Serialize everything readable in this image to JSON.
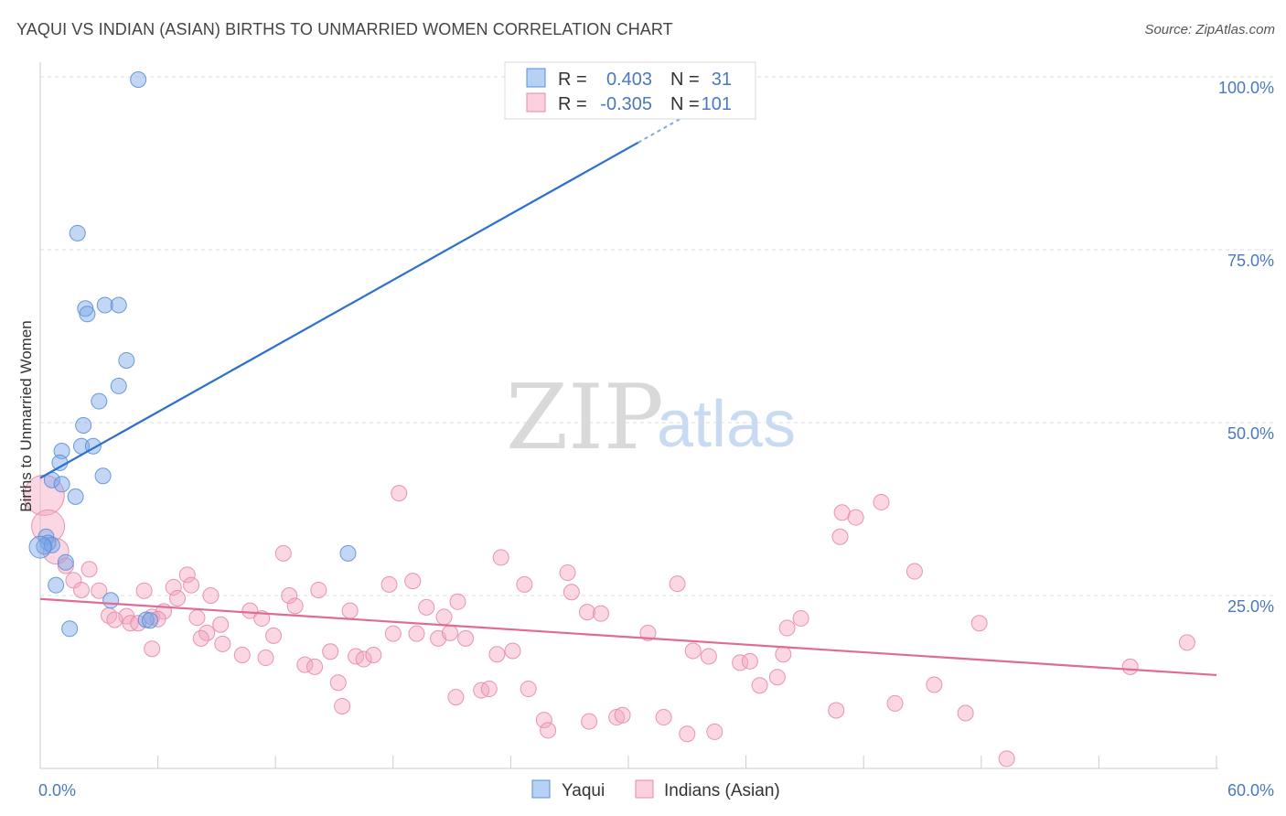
{
  "header": {
    "title": "YAQUI VS INDIAN (ASIAN) BIRTHS TO UNMARRIED WOMEN CORRELATION CHART",
    "source": "Source: ZipAtlas.com"
  },
  "watermark": {
    "zip": "ZIP",
    "atlas": "atlas"
  },
  "legend_stats": [
    {
      "r_label": "R =",
      "r_value": "0.403",
      "n_label": "N =",
      "n_value": "31",
      "color": "#4a78c0"
    },
    {
      "r_label": "R =",
      "r_value": "-0.305",
      "n_label": "N =",
      "n_value": "101",
      "color": "#4a78c0"
    }
  ],
  "chart_data": {
    "type": "scatter",
    "ylabel": "Births to Unmarried Women",
    "xlim": [
      0,
      60
    ],
    "ylim": [
      0,
      100
    ],
    "y_ticks": [
      {
        "value": 25,
        "label": "25.0%"
      },
      {
        "value": 50,
        "label": "50.0%"
      },
      {
        "value": 75,
        "label": "75.0%"
      },
      {
        "value": 100,
        "label": "100.0%"
      }
    ],
    "x_tick_labels": [
      {
        "value": 0,
        "label": "0.0%"
      },
      {
        "value": 60,
        "label": "60.0%"
      }
    ],
    "x_minor_ticks": [
      0,
      6,
      12,
      18,
      24,
      30,
      36,
      42,
      48,
      54,
      60
    ],
    "grid": true,
    "series": [
      {
        "name": "Yaqui",
        "color": "#7aa7e8",
        "stroke": "#5b8fd6",
        "line_color": "#2b6fd0",
        "trend": {
          "x": [
            0,
            30.5
          ],
          "y": [
            42,
            90.5
          ],
          "dashed_x": [
            30.5,
            33
          ],
          "dashed_y": [
            90.5,
            94.5
          ]
        },
        "points": [
          [
            5.0,
            99.6
          ],
          [
            1.9,
            77.4
          ],
          [
            2.3,
            66.5
          ],
          [
            2.4,
            65.7
          ],
          [
            3.3,
            67.0
          ],
          [
            4.0,
            67.0
          ],
          [
            4.4,
            59.0
          ],
          [
            4.0,
            55.3
          ],
          [
            3.0,
            53.1
          ],
          [
            2.2,
            49.6
          ],
          [
            2.1,
            46.6
          ],
          [
            2.7,
            46.6
          ],
          [
            1.1,
            45.9
          ],
          [
            1.0,
            44.2
          ],
          [
            3.2,
            42.3
          ],
          [
            0.6,
            41.7
          ],
          [
            1.1,
            41.1
          ],
          [
            1.8,
            39.3
          ],
          [
            0.3,
            33.5
          ],
          [
            0.4,
            32.6
          ],
          [
            0.2,
            32.1
          ],
          [
            0.6,
            32.3
          ],
          [
            0.0,
            32.0
          ],
          [
            1.3,
            29.8
          ],
          [
            0.8,
            26.5
          ],
          [
            3.6,
            24.3
          ],
          [
            5.4,
            21.5
          ],
          [
            5.6,
            21.4
          ],
          [
            1.5,
            20.2
          ],
          [
            15.7,
            31.1
          ],
          [
            25.0,
            99.0
          ]
        ]
      },
      {
        "name": "Indians (Asian)",
        "color": "#f4a6c0",
        "stroke": "#e68aa8",
        "line_color": "#e06b96",
        "trend": {
          "x": [
            0,
            60
          ],
          "y": [
            24.5,
            13.5
          ]
        },
        "points": [
          [
            0.2,
            39.5
          ],
          [
            0.4,
            35.0
          ],
          [
            0.8,
            31.4
          ],
          [
            1.3,
            29.3
          ],
          [
            2.5,
            28.8
          ],
          [
            1.7,
            27.2
          ],
          [
            2.1,
            25.8
          ],
          [
            3.0,
            25.7
          ],
          [
            5.3,
            25.7
          ],
          [
            6.8,
            26.2
          ],
          [
            7.5,
            28.0
          ],
          [
            7.7,
            26.5
          ],
          [
            8.7,
            25.0
          ],
          [
            7.0,
            24.6
          ],
          [
            6.3,
            22.7
          ],
          [
            3.5,
            22.1
          ],
          [
            4.4,
            22.0
          ],
          [
            3.8,
            21.5
          ],
          [
            4.6,
            21.0
          ],
          [
            5.7,
            21.9
          ],
          [
            8.0,
            21.8
          ],
          [
            9.2,
            20.8
          ],
          [
            8.5,
            19.6
          ],
          [
            8.2,
            18.8
          ],
          [
            9.3,
            18.0
          ],
          [
            5.7,
            17.3
          ],
          [
            10.3,
            16.4
          ],
          [
            11.5,
            16.0
          ],
          [
            10.7,
            22.8
          ],
          [
            11.3,
            21.7
          ],
          [
            11.9,
            19.2
          ],
          [
            12.4,
            31.1
          ],
          [
            12.7,
            25.0
          ],
          [
            13.0,
            23.5
          ],
          [
            14.2,
            25.8
          ],
          [
            13.5,
            15.0
          ],
          [
            14.0,
            14.7
          ],
          [
            14.8,
            16.9
          ],
          [
            15.2,
            12.4
          ],
          [
            15.4,
            9.0
          ],
          [
            15.8,
            22.8
          ],
          [
            16.1,
            16.2
          ],
          [
            16.5,
            15.8
          ],
          [
            17.0,
            16.4
          ],
          [
            17.8,
            26.6
          ],
          [
            18.0,
            19.5
          ],
          [
            19.2,
            19.5
          ],
          [
            19.0,
            27.1
          ],
          [
            18.3,
            39.8
          ],
          [
            19.7,
            23.3
          ],
          [
            20.3,
            18.8
          ],
          [
            20.6,
            21.9
          ],
          [
            20.9,
            19.6
          ],
          [
            21.3,
            24.1
          ],
          [
            21.7,
            18.8
          ],
          [
            21.2,
            10.3
          ],
          [
            22.5,
            11.3
          ],
          [
            22.9,
            11.5
          ],
          [
            23.3,
            16.5
          ],
          [
            23.5,
            30.5
          ],
          [
            24.1,
            17.0
          ],
          [
            24.7,
            26.6
          ],
          [
            24.9,
            11.5
          ],
          [
            25.7,
            7.0
          ],
          [
            25.9,
            5.5
          ],
          [
            26.9,
            28.3
          ],
          [
            27.1,
            25.5
          ],
          [
            27.9,
            22.6
          ],
          [
            28.6,
            22.4
          ],
          [
            28.0,
            6.8
          ],
          [
            29.4,
            7.4
          ],
          [
            29.7,
            7.7
          ],
          [
            31.0,
            19.6
          ],
          [
            31.8,
            7.4
          ],
          [
            32.5,
            26.7
          ],
          [
            33.0,
            5.0
          ],
          [
            33.3,
            17.0
          ],
          [
            34.4,
            5.3
          ],
          [
            34.1,
            16.2
          ],
          [
            35.7,
            15.3
          ],
          [
            36.2,
            15.5
          ],
          [
            36.7,
            12.0
          ],
          [
            37.6,
            13.2
          ],
          [
            37.9,
            16.5
          ],
          [
            38.1,
            20.3
          ],
          [
            38.8,
            21.7
          ],
          [
            40.8,
            33.5
          ],
          [
            40.9,
            37.0
          ],
          [
            41.6,
            36.3
          ],
          [
            42.9,
            38.5
          ],
          [
            40.6,
            8.4
          ],
          [
            43.6,
            9.4
          ],
          [
            44.6,
            28.5
          ],
          [
            45.6,
            12.1
          ],
          [
            47.2,
            8.0
          ],
          [
            47.9,
            21.0
          ],
          [
            49.3,
            1.4
          ],
          [
            55.6,
            14.7
          ],
          [
            58.5,
            18.2
          ],
          [
            5.0,
            21.0
          ],
          [
            6.0,
            21.6
          ]
        ]
      }
    ]
  },
  "bottom_legend": [
    {
      "label": "Yaqui",
      "color": "#b7d1f5",
      "stroke": "#5b8fd6"
    },
    {
      "label": "Indians (Asian)",
      "color": "#fbd0de",
      "stroke": "#e68aa8"
    }
  ]
}
